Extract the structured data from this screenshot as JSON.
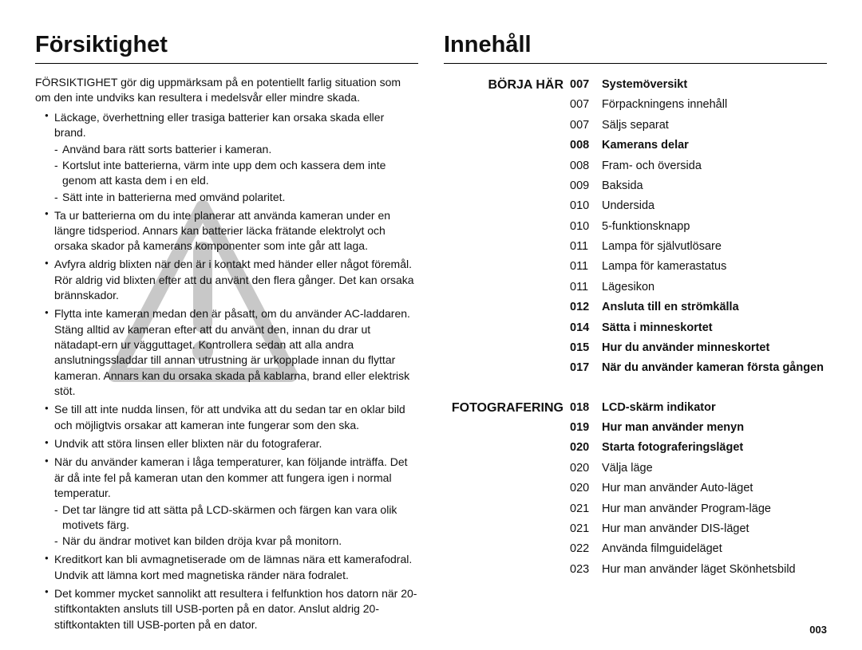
{
  "left": {
    "heading": "Försiktighet",
    "intro": "FÖRSIKTIGHET gör dig uppmärksam på en potentiellt farlig situation som om den inte undviks kan resultera i medelsvår eller mindre skada.",
    "bullets": [
      {
        "text": "Läckage, överhettning eller trasiga batterier kan orsaka skada eller brand.",
        "sub": [
          "Använd bara rätt sorts batterier i kameran.",
          "Kortslut inte batterierna, värm inte upp dem och kassera dem inte genom att kasta dem i en eld.",
          "Sätt inte in batterierna med omvänd polaritet."
        ]
      },
      {
        "text": "Ta ur batterierna om du inte planerar att använda kameran under en längre tidsperiod. Annars kan batterier läcka frätande elektrolyt och orsaka skador på kamerans komponenter som inte går att laga."
      },
      {
        "text": "Avfyra aldrig blixten när den är i kontakt med händer eller något föremål. Rör aldrig vid blixten efter att du använt den flera gånger. Det kan orsaka brännskador."
      },
      {
        "text": "Flytta inte kameran medan den är påsatt, om du använder AC-laddaren. Stäng alltid av kameran efter att du använt den, innan du drar ut nätadapt-ern ur vägguttaget. Kontrollera sedan att alla andra anslutningssladdar till annan utrustning är urkopplade innan du flyttar kameran. Annars kan du orsaka skada på kablarna, brand eller elektrisk stöt."
      },
      {
        "text": "Se till att inte nudda linsen, för att undvika att du sedan tar en oklar bild och möjligtvis orsakar att kameran inte fungerar som den ska."
      },
      {
        "text": "Undvik att störa linsen eller blixten när du fotograferar."
      },
      {
        "text": "När du använder kameran i låga temperaturer, kan följande inträffa. Det är då inte fel på kameran utan den kommer att fungera igen i normal temperatur.",
        "sub": [
          "Det tar längre tid att sätta på LCD-skärmen och färgen kan vara olik motivets färg.",
          "När du ändrar motivet kan bilden dröja kvar på monitorn."
        ]
      },
      {
        "text": "Kreditkort kan bli avmagnetiserade om de lämnas nära ett kamerafodral. Undvik att lämna kort med magnetiska ränder nära fodralet."
      },
      {
        "text": "Det kommer mycket sannolikt att resultera i felfunktion hos datorn när 20-stiftkontakten ansluts till USB-porten på en dator. Anslut aldrig 20-stiftkontakten till USB-porten på en dator."
      }
    ]
  },
  "right": {
    "heading": "Innehåll",
    "sections": [
      {
        "label": "BÖRJA HÄR",
        "rows": [
          {
            "pg": "007",
            "txt": "Systemöversikt",
            "bold": true
          },
          {
            "pg": "007",
            "txt": "Förpackningens innehåll"
          },
          {
            "pg": "007",
            "txt": "Säljs separat"
          },
          {
            "pg": "008",
            "txt": "Kamerans delar",
            "bold": true
          },
          {
            "pg": "008",
            "txt": "Fram- och översida"
          },
          {
            "pg": "009",
            "txt": "Baksida"
          },
          {
            "pg": "010",
            "txt": "Undersida"
          },
          {
            "pg": "010",
            "txt": "5-funktionsknapp"
          },
          {
            "pg": "011",
            "txt": "Lampa för självutlösare"
          },
          {
            "pg": "011",
            "txt": "Lampa för kamerastatus"
          },
          {
            "pg": "011",
            "txt": "Lägesikon"
          },
          {
            "pg": "012",
            "txt": "Ansluta till en strömkälla",
            "bold": true
          },
          {
            "pg": "014",
            "txt": "Sätta i minneskortet",
            "bold": true
          },
          {
            "pg": "015",
            "txt": "Hur du använder minneskortet",
            "bold": true
          },
          {
            "pg": "017",
            "txt": "När du använder kameran första gången",
            "bold": true
          }
        ]
      },
      {
        "label": "FOTOGRAFERING",
        "rows": [
          {
            "pg": "018",
            "txt": "LCD-skärm indikator",
            "bold": true
          },
          {
            "pg": "019",
            "txt": "Hur man använder menyn",
            "bold": true
          },
          {
            "pg": "020",
            "txt": "Starta fotograferingsläget",
            "bold": true
          },
          {
            "pg": "020",
            "txt": "Välja läge"
          },
          {
            "pg": "020",
            "txt": "Hur man använder Auto-läget"
          },
          {
            "pg": "021",
            "txt": "Hur man använder Program-läge"
          },
          {
            "pg": "021",
            "txt": "Hur man använder DIS-läget"
          },
          {
            "pg": "022",
            "txt": "Använda filmguideläget"
          },
          {
            "pg": "023",
            "txt": "Hur man använder läget Skönhetsbild"
          }
        ]
      }
    ]
  },
  "pageNumber": "003",
  "watermark": {
    "stroke": "#c8c8c8",
    "fill": "none",
    "strokeWidth": 18
  }
}
